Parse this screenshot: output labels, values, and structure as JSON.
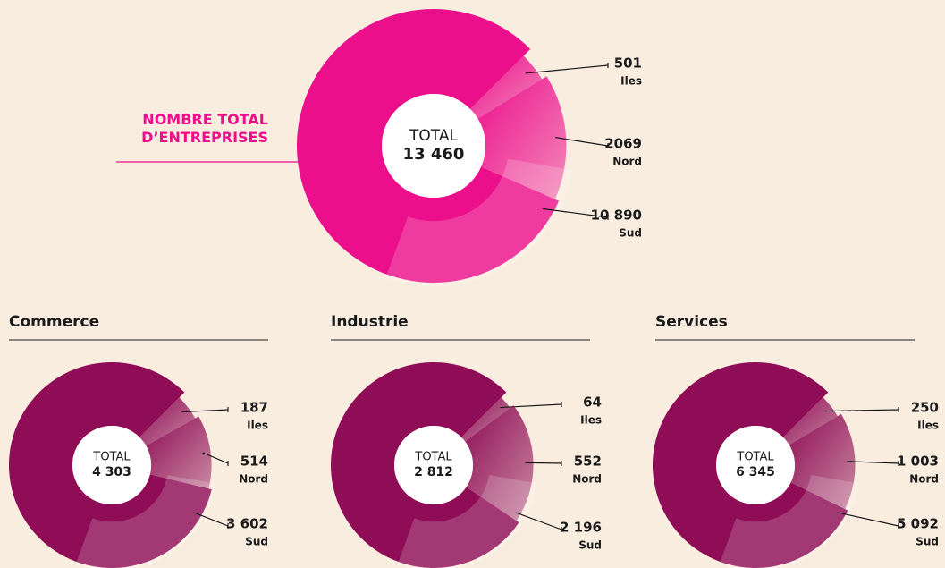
{
  "chart_data": [
    {
      "type": "pie",
      "title": "NOMBRE TOTAL D’ENTREPRISES",
      "center_text": "TOTAL",
      "total": {
        "value": 13460,
        "label": "13 460"
      },
      "categories": [
        "Iles",
        "Nord",
        "Sud"
      ],
      "values": [
        501,
        2069,
        10890
      ],
      "value_labels": [
        "501",
        "2069",
        "10 890"
      ],
      "color": "#ec0f8c"
    },
    {
      "type": "pie",
      "title": "Commerce",
      "center_text": "TOTAL",
      "total": {
        "value": 4303,
        "label": "4 303"
      },
      "categories": [
        "Iles",
        "Nord",
        "Sud"
      ],
      "values": [
        187,
        514,
        3602
      ],
      "value_labels": [
        "187",
        "514",
        "3 602"
      ],
      "color": "#8e0d56"
    },
    {
      "type": "pie",
      "title": "Industrie",
      "center_text": "TOTAL",
      "total": {
        "value": 2812,
        "label": "2 812"
      },
      "categories": [
        "Iles",
        "Nord",
        "Sud"
      ],
      "values": [
        64,
        552,
        2196
      ],
      "value_labels": [
        "64",
        "552",
        "2 196"
      ],
      "color": "#8e0d56"
    },
    {
      "type": "pie",
      "title": "Services",
      "center_text": "TOTAL",
      "total": {
        "value": 6345,
        "label": "6 345"
      },
      "categories": [
        "Iles",
        "Nord",
        "Sud"
      ],
      "values": [
        250,
        1003,
        5092
      ],
      "value_labels": [
        "250",
        "1 003",
        "5 092"
      ],
      "color": "#8e0d56"
    }
  ]
}
